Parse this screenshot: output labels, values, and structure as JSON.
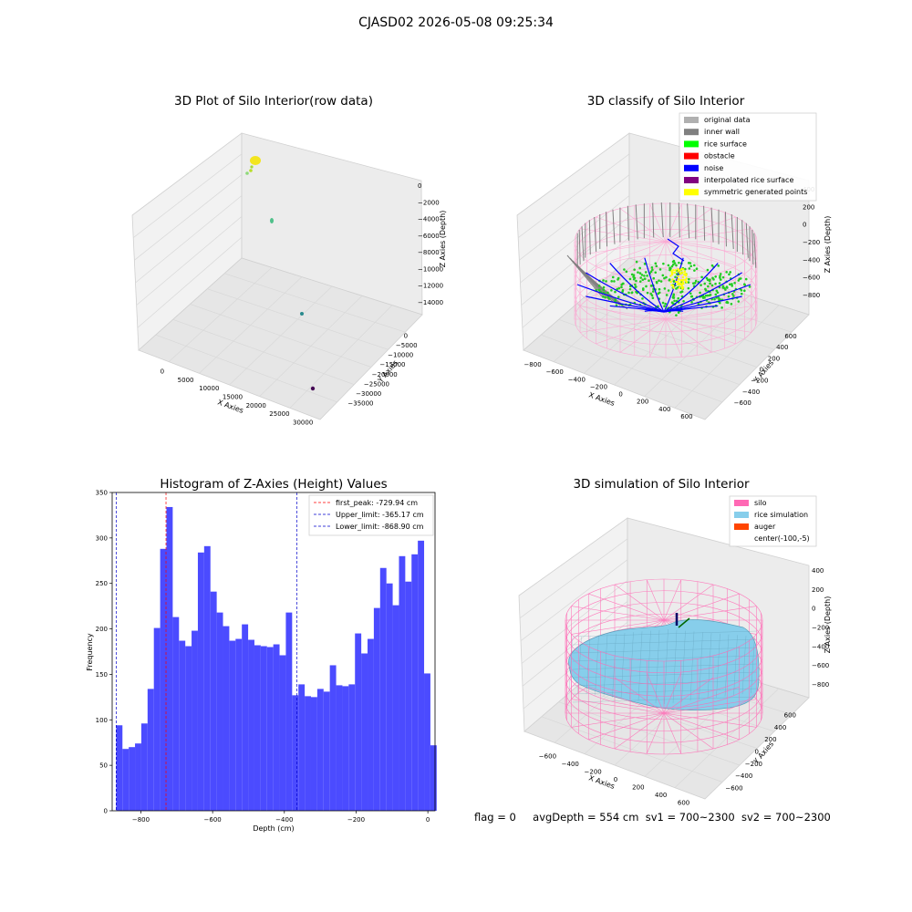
{
  "figure": {
    "title": "CJASD02 2026-05-08 09:25:34",
    "status": {
      "flag": "flag = 0",
      "avg_depth": "avgDepth = 554 cm",
      "sv1": "sv1 = 700~2300",
      "sv2": "sv2 = 700~2300"
    }
  },
  "raw_plot": {
    "title": "3D Plot of Silo Interior(row data)",
    "xlabel": "X Axies",
    "ylabel": "Y Axies",
    "zlabel": "Z Axies (Depth)",
    "x_ticks": [
      "0",
      "5000",
      "10000",
      "15000",
      "20000",
      "25000",
      "30000"
    ],
    "y_ticks": [
      "0",
      "−5000",
      "−10000",
      "−15000",
      "−20000",
      "−25000",
      "−30000",
      "−35000"
    ],
    "z_ticks": [
      "0",
      "−2000",
      "−4000",
      "−6000",
      "−8000",
      "−10000",
      "−12000",
      "−14000"
    ],
    "colors": {
      "main_cluster": "#f3e51f",
      "light_green": "#8fd97a",
      "teal_green": "#4fc08a",
      "teal": "#2a8a8e",
      "purple": "#440154"
    }
  },
  "classify_plot": {
    "title": "3D classify of Silo Interior",
    "xlabel": "X Axies",
    "ylabel": "Y Axies",
    "zlabel": "Z Axies (Depth)",
    "x_ticks": [
      "−800",
      "−600",
      "−400",
      "−200",
      "0",
      "200",
      "400",
      "600"
    ],
    "y_ticks": [
      "600",
      "400",
      "200",
      "0",
      "−200",
      "−400",
      "−600"
    ],
    "z_ticks": [
      "400",
      "200",
      "0",
      "−200",
      "−400",
      "−600",
      "−800"
    ],
    "legend": [
      {
        "label": "original data",
        "color": "#b0b0b0"
      },
      {
        "label": "inner wall",
        "color": "#808080"
      },
      {
        "label": "rice surface",
        "color": "#00ff00"
      },
      {
        "label": "obstacle",
        "color": "#ff0000"
      },
      {
        "label": "noise",
        "color": "#0000ff"
      },
      {
        "label": "interpolated rice surface",
        "color": "#800080"
      },
      {
        "label": "symmetric generated points",
        "color": "#ffff00"
      }
    ]
  },
  "simulation_plot": {
    "title": "3D simulation of Silo Interior",
    "xlabel": "X Axies",
    "ylabel": "Y Axies",
    "zlabel": "Z Axies (Depth)",
    "x_ticks": [
      "−600",
      "−400",
      "−200",
      "0",
      "200",
      "400",
      "600"
    ],
    "y_ticks": [
      "600",
      "400",
      "200",
      "0",
      "−200",
      "−400",
      "−600"
    ],
    "z_ticks": [
      "400",
      "200",
      "0",
      "−200",
      "−400",
      "−600",
      "−800"
    ],
    "legend": [
      {
        "label": "silo",
        "color": "#ff69b4"
      },
      {
        "label": "rice simulation",
        "color": "#87ceeb"
      },
      {
        "label": "auger",
        "color": "#ff4500"
      },
      {
        "label": "center(-100,-5)",
        "color": ""
      }
    ],
    "surface_color": "#87ceeb",
    "silo_color": "#ff69b4"
  },
  "chart_data": [
    {
      "type": "bar",
      "title": "Histogram of Z-Axies (Height) Values",
      "xlabel": "Depth (cm)",
      "ylabel": "Frequency",
      "bar_color": "#4b4bff",
      "xlim": [
        -880,
        20
      ],
      "ylim": [
        0,
        350
      ],
      "x_ticks": [
        {
          "value": -800,
          "label": "−800"
        },
        {
          "value": -600,
          "label": "−600"
        },
        {
          "value": -400,
          "label": "−400"
        },
        {
          "value": -200,
          "label": "−200"
        },
        {
          "value": 0,
          "label": "0"
        }
      ],
      "y_ticks": [
        0,
        50,
        100,
        150,
        200,
        250,
        300,
        350
      ],
      "bin_start": -868.9,
      "bin_width": 17.52,
      "values": [
        94,
        68,
        70,
        74,
        96,
        134,
        201,
        288,
        334,
        213,
        187,
        181,
        198,
        284,
        291,
        241,
        218,
        203,
        187,
        189,
        205,
        188,
        182,
        181,
        180,
        183,
        171,
        218,
        127,
        139,
        126,
        125,
        134,
        131,
        160,
        138,
        137,
        139,
        195,
        173,
        189,
        223,
        267,
        250,
        226,
        280,
        252,
        282,
        297,
        151,
        72
      ],
      "vlines": [
        {
          "x": -729.94,
          "color": "#ff0000",
          "label": "first_peak: -729.94 cm"
        },
        {
          "x": -365.17,
          "color": "#0000cc",
          "label": "Upper_limit: -365.17 cm"
        },
        {
          "x": -868.9,
          "color": "#0000cc",
          "label": "Lower_limit: -868.90 cm"
        }
      ]
    }
  ]
}
